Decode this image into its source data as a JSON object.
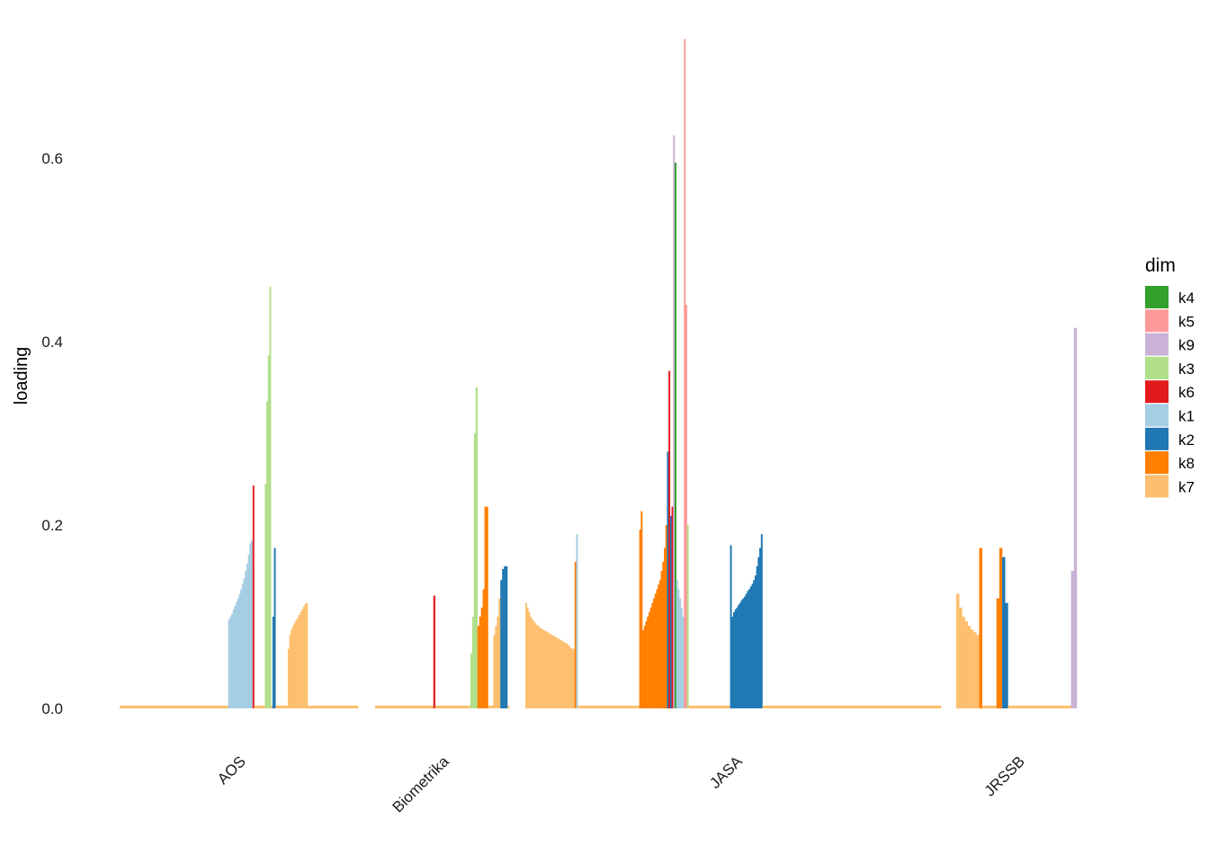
{
  "chart_data": {
    "type": "bar",
    "title": "",
    "xlabel": "",
    "ylabel": "loading",
    "ylim": [
      0,
      0.73
    ],
    "y_ticks": [
      {
        "value": 0.0,
        "label": "0.0"
      },
      {
        "value": 0.2,
        "label": "0.2"
      },
      {
        "value": 0.4,
        "label": "0.4"
      },
      {
        "value": 0.6,
        "label": "0.6"
      }
    ],
    "grid": false,
    "legend_position": "right",
    "legend": {
      "title": "dim",
      "entries": [
        {
          "name": "k4",
          "color": "#33a02c"
        },
        {
          "name": "k5",
          "color": "#fb9a99"
        },
        {
          "name": "k9",
          "color": "#cab2d6"
        },
        {
          "name": "k3",
          "color": "#b2df8a"
        },
        {
          "name": "k6",
          "color": "#e31a1c"
        },
        {
          "name": "k1",
          "color": "#a6cee3"
        },
        {
          "name": "k2",
          "color": "#1f78b4"
        },
        {
          "name": "k8",
          "color": "#ff7f00"
        },
        {
          "name": "k7",
          "color": "#fdbf6f"
        }
      ]
    },
    "categories": [
      "AOS",
      "Biometrika",
      "JASA",
      "JRSSB"
    ],
    "groups": [
      {
        "name": "AOS",
        "segments": [
          {
            "dim": "k7",
            "values": [
              0.003,
              0.003,
              0.003,
              0.003,
              0.003,
              0.003,
              0.003,
              0.003,
              0.003,
              0.003,
              0.003,
              0.003,
              0.003,
              0.003,
              0.003,
              0.003,
              0.003,
              0.003,
              0.003,
              0.003,
              0.003,
              0.003,
              0.003,
              0.003,
              0.003,
              0.003,
              0.003,
              0.003,
              0.003,
              0.003,
              0.003,
              0.003,
              0.003,
              0.003,
              0.003,
              0.003,
              0.003,
              0.003,
              0.003,
              0.003,
              0.003,
              0.003,
              0.003,
              0.003,
              0.003,
              0.003,
              0.003,
              0.003,
              0.003,
              0.003,
              0.003,
              0.003,
              0.003,
              0.003,
              0.003,
              0.003,
              0.003,
              0.003,
              0.003,
              0.003,
              0.003,
              0.003,
              0.003,
              0.003,
              0.003,
              0.003,
              0.003,
              0.003,
              0.003,
              0.003,
              0.003
            ]
          },
          {
            "dim": "k1",
            "values": [
              0.097,
              0.1,
              0.103,
              0.108,
              0.112,
              0.116,
              0.12,
              0.125,
              0.13,
              0.136,
              0.142,
              0.15,
              0.158,
              0.168,
              0.18,
              0.183
            ]
          },
          {
            "dim": "k6",
            "values": [
              0.243
            ]
          },
          {
            "dim": "k7",
            "values": [
              0.003,
              0.003,
              0.003,
              0.003,
              0.003,
              0.003,
              0.003
            ]
          },
          {
            "dim": "k3",
            "values": [
              0.245,
              0.335,
              0.385,
              0.46
            ]
          },
          {
            "dim": "k7",
            "values": [
              0.003
            ]
          },
          {
            "dim": "k2",
            "values": [
              0.1,
              0.175
            ]
          },
          {
            "dim": "k7",
            "values": [
              0.003,
              0.003,
              0.003,
              0.003,
              0.003,
              0.003,
              0.003,
              0.003
            ]
          },
          {
            "dim": "k7",
            "values": [
              0.065,
              0.08,
              0.086,
              0.09,
              0.093,
              0.096,
              0.099,
              0.102,
              0.105,
              0.108,
              0.111,
              0.114,
              0.115
            ]
          },
          {
            "dim": "k7",
            "values": [
              0.003,
              0.003,
              0.003,
              0.003,
              0.003,
              0.003,
              0.003,
              0.003,
              0.003,
              0.003,
              0.003,
              0.003,
              0.003,
              0.003,
              0.003,
              0.003,
              0.003,
              0.003,
              0.003,
              0.003,
              0.003,
              0.003,
              0.003,
              0.003,
              0.003,
              0.003,
              0.003,
              0.003,
              0.003,
              0.003,
              0.003,
              0.003,
              0.003
            ]
          }
        ]
      },
      {
        "name": "Biometrika",
        "segments": [
          {
            "dim": "k7",
            "values": [
              0.003,
              0.003,
              0.003,
              0.003,
              0.003,
              0.003,
              0.003,
              0.003,
              0.003,
              0.003,
              0.003,
              0.003,
              0.003,
              0.003,
              0.003,
              0.003,
              0.003,
              0.003,
              0.003,
              0.003,
              0.003,
              0.003,
              0.003,
              0.003,
              0.003,
              0.003,
              0.003,
              0.003,
              0.003,
              0.003,
              0.003,
              0.003,
              0.003
            ]
          },
          {
            "dim": "k6",
            "values": [
              0.123
            ]
          },
          {
            "dim": "k7",
            "values": [
              0.003,
              0.003,
              0.003,
              0.003,
              0.003,
              0.003,
              0.003,
              0.003,
              0.003,
              0.003,
              0.003,
              0.003,
              0.003,
              0.003,
              0.003,
              0.003,
              0.003,
              0.003,
              0.003,
              0.003
            ]
          },
          {
            "dim": "k3",
            "values": [
              0.06,
              0.1,
              0.3,
              0.35
            ]
          },
          {
            "dim": "k8",
            "values": [
              0.09,
              0.1,
              0.11,
              0.13,
              0.22,
              0.22
            ]
          },
          {
            "dim": "k7",
            "values": [
              0.003,
              0.003,
              0.003
            ]
          },
          {
            "dim": "k7",
            "values": [
              0.08,
              0.09,
              0.1,
              0.12
            ]
          },
          {
            "dim": "k2",
            "values": [
              0.14,
              0.152,
              0.155,
              0.155
            ]
          },
          {
            "dim": "k7",
            "values": [
              0.003
            ]
          }
        ]
      },
      {
        "name": "JASA",
        "segments": [
          {
            "dim": "k7",
            "values": [
              0.115,
              0.11,
              0.105,
              0.1,
              0.097,
              0.095,
              0.093,
              0.091,
              0.09,
              0.088,
              0.087,
              0.086,
              0.085,
              0.084,
              0.083,
              0.082,
              0.081,
              0.08,
              0.079,
              0.078,
              0.077,
              0.076,
              0.075,
              0.074,
              0.073,
              0.072,
              0.071,
              0.07,
              0.068,
              0.066,
              0.065,
              0.065
            ]
          },
          {
            "dim": "k8",
            "values": [
              0.16
            ]
          },
          {
            "dim": "k1",
            "values": [
              0.19
            ]
          },
          {
            "dim": "k7",
            "values": [
              0.003,
              0.003,
              0.003,
              0.003,
              0.003,
              0.003,
              0.003,
              0.003,
              0.003,
              0.003,
              0.003,
              0.003,
              0.003,
              0.003,
              0.003,
              0.003,
              0.003,
              0.003,
              0.003,
              0.003,
              0.003,
              0.003,
              0.003,
              0.003,
              0.003,
              0.003,
              0.003,
              0.003,
              0.003,
              0.003,
              0.003,
              0.003,
              0.003,
              0.003,
              0.003,
              0.003,
              0.003,
              0.003,
              0.003,
              0.003
            ]
          },
          {
            "dim": "k8",
            "values": [
              0.195,
              0.215,
              0.085,
              0.09,
              0.095,
              0.1,
              0.105,
              0.11,
              0.115,
              0.12,
              0.125,
              0.13,
              0.135,
              0.14,
              0.15,
              0.16,
              0.175,
              0.2
            ]
          },
          {
            "dim": "k2",
            "values": [
              0.28
            ]
          },
          {
            "dim": "k6",
            "values": [
              0.368
            ]
          },
          {
            "dim": "k2",
            "values": [
              0.21
            ]
          },
          {
            "dim": "k6",
            "values": [
              0.22
            ]
          },
          {
            "dim": "k9",
            "values": [
              0.625
            ]
          },
          {
            "dim": "k4",
            "values": [
              0.595
            ]
          },
          {
            "dim": "k1",
            "values": [
              0.14,
              0.13,
              0.12,
              0.11,
              0.1
            ]
          },
          {
            "dim": "k5",
            "values": [
              0.73,
              0.44
            ]
          },
          {
            "dim": "k3",
            "values": [
              0.2
            ]
          },
          {
            "dim": "k7",
            "values": [
              0.003,
              0.003,
              0.003,
              0.003,
              0.003,
              0.003,
              0.003,
              0.003,
              0.003,
              0.003,
              0.003,
              0.003,
              0.003,
              0.003,
              0.003,
              0.003,
              0.003,
              0.003,
              0.003,
              0.003,
              0.003,
              0.003,
              0.003,
              0.003,
              0.003,
              0.003,
              0.003
            ]
          },
          {
            "dim": "k2",
            "values": [
              0.178,
              0.1,
              0.105,
              0.108,
              0.11,
              0.113,
              0.115,
              0.118,
              0.12,
              0.122,
              0.125,
              0.128,
              0.13,
              0.133,
              0.136,
              0.14,
              0.145,
              0.155,
              0.165,
              0.175,
              0.19
            ]
          },
          {
            "dim": "k7",
            "values": [
              0.003,
              0.003,
              0.003,
              0.003,
              0.003,
              0.003,
              0.003,
              0.003,
              0.003,
              0.003,
              0.003,
              0.003,
              0.003,
              0.003,
              0.003,
              0.003,
              0.003,
              0.003,
              0.003,
              0.003,
              0.003,
              0.003,
              0.003,
              0.003,
              0.003,
              0.003,
              0.003,
              0.003,
              0.003,
              0.003,
              0.003,
              0.003,
              0.003,
              0.003,
              0.003,
              0.003,
              0.003,
              0.003,
              0.003,
              0.003,
              0.003,
              0.003,
              0.003,
              0.003,
              0.003,
              0.003,
              0.003,
              0.003,
              0.003,
              0.003,
              0.003,
              0.003,
              0.003,
              0.003,
              0.003,
              0.003,
              0.003,
              0.003,
              0.003,
              0.003,
              0.003,
              0.003,
              0.003,
              0.003,
              0.003,
              0.003,
              0.003,
              0.003,
              0.003,
              0.003,
              0.003,
              0.003,
              0.003,
              0.003,
              0.003,
              0.003,
              0.003,
              0.003,
              0.003,
              0.003,
              0.003,
              0.003,
              0.003,
              0.003,
              0.003,
              0.003,
              0.003,
              0.003,
              0.003,
              0.003,
              0.003,
              0.003,
              0.003,
              0.003,
              0.003,
              0.003,
              0.003,
              0.003,
              0.003,
              0.003,
              0.003,
              0.003,
              0.003,
              0.003,
              0.003,
              0.003,
              0.003,
              0.003,
              0.003,
              0.003,
              0.003,
              0.003,
              0.003,
              0.003,
              0.003,
              0.003
            ]
          }
        ]
      },
      {
        "name": "JRSSB",
        "segments": [
          {
            "dim": "k7",
            "values": [
              0.125,
              0.11,
              0.1,
              0.095,
              0.09,
              0.086,
              0.083,
              0.08
            ]
          },
          {
            "dim": "k8",
            "values": [
              0.175
            ]
          },
          {
            "dim": "k7",
            "values": [
              0.003,
              0.003,
              0.003,
              0.003,
              0.003
            ]
          },
          {
            "dim": "k8",
            "values": [
              0.12,
              0.175
            ]
          },
          {
            "dim": "k2",
            "values": [
              0.165,
              0.115
            ]
          },
          {
            "dim": "k7",
            "values": [
              0.003,
              0.003,
              0.003,
              0.003,
              0.003,
              0.003,
              0.003,
              0.003,
              0.003,
              0.003,
              0.003,
              0.003,
              0.003,
              0.003,
              0.003,
              0.003,
              0.003,
              0.003,
              0.003,
              0.003,
              0.003,
              0.003
            ]
          },
          {
            "dim": "k9",
            "values": [
              0.15,
              0.415
            ]
          }
        ]
      }
    ]
  }
}
